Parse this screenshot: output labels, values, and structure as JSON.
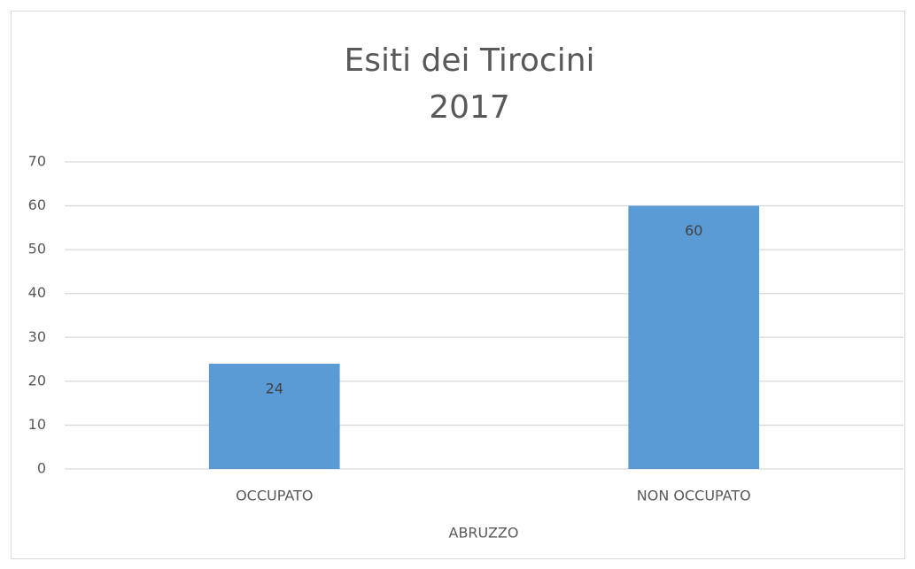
{
  "chart_data": {
    "type": "bar",
    "title": [
      "Esiti dei Tirocini",
      "2017"
    ],
    "categories": [
      "OCCUPATO",
      "NON OCCUPATO"
    ],
    "values": [
      24,
      60
    ],
    "color": "#5b9bd5",
    "xlabel": "ABRUZZO",
    "ylim": [
      0,
      70
    ],
    "yticks": [
      0,
      10,
      20,
      30,
      40,
      50,
      60,
      70
    ],
    "grid": true
  }
}
